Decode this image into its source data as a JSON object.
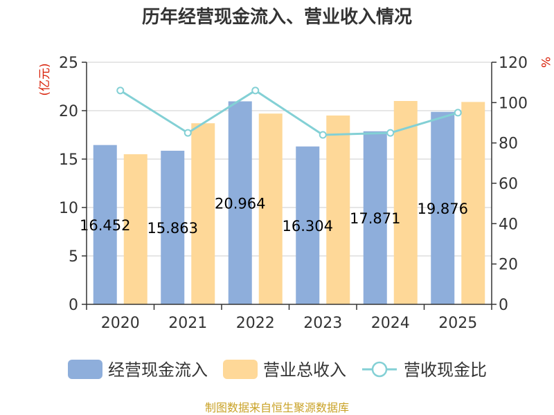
{
  "chart_data": {
    "type": "bar",
    "title": "历年经营现金流入、营业收入情况",
    "categories": [
      "2020",
      "2021",
      "2022",
      "2023",
      "2024",
      "2025"
    ],
    "y_left": {
      "unit": "(亿元)",
      "range": [
        0,
        25
      ],
      "ticks": [
        "0",
        "5",
        "10",
        "15",
        "20",
        "25"
      ]
    },
    "y_right": {
      "unit": "%",
      "range": [
        0,
        120
      ],
      "ticks": [
        "0",
        "20",
        "40",
        "60",
        "80",
        "100",
        "120"
      ]
    },
    "grid": true,
    "series": [
      {
        "name": "经营现金流入",
        "type": "bar",
        "axis": "left",
        "color": "#8eaedb",
        "values": [
          16.452,
          15.863,
          20.964,
          16.304,
          17.871,
          19.876
        ],
        "labels": [
          "16.452",
          "15.863",
          "20.964",
          "16.304",
          "17.871",
          "19.876"
        ]
      },
      {
        "name": "营业总收入",
        "type": "bar",
        "axis": "left",
        "color": "#fed898",
        "values": [
          15.5,
          18.7,
          19.7,
          19.5,
          21.0,
          20.9
        ]
      },
      {
        "name": "营收现金比",
        "type": "line",
        "axis": "right",
        "color": "#83d0d5",
        "values": [
          106,
          85,
          106,
          84,
          85,
          95
        ]
      }
    ],
    "legend": {
      "placement": "bottom"
    }
  },
  "source": "制图数据来自恒生聚源数据库"
}
